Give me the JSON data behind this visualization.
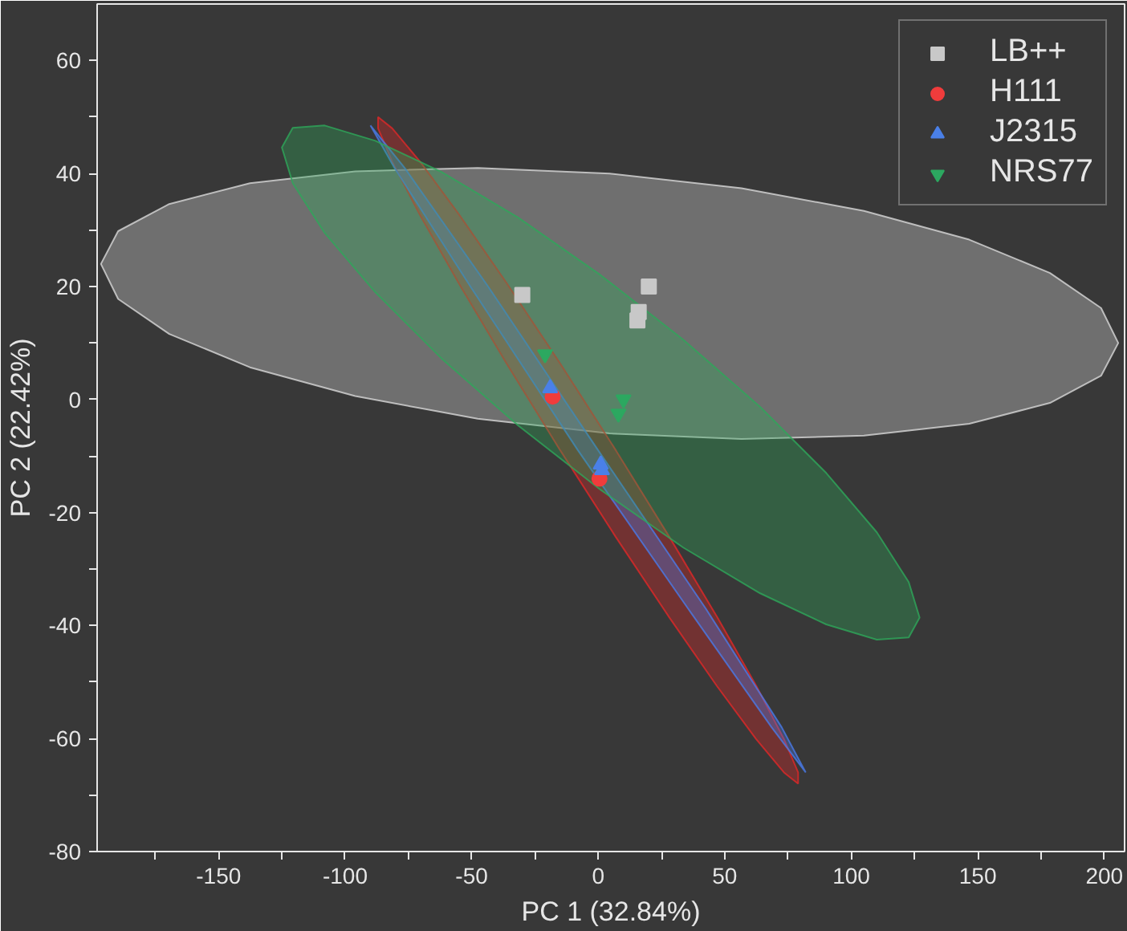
{
  "chart_data": {
    "type": "scatter",
    "xlabel": "PC 1 (32.84%)",
    "ylabel": "PC 2 (22.42%)",
    "xlim": [
      -198,
      208
    ],
    "ylim": [
      -80,
      70
    ],
    "xticks": [
      {
        "value": -175,
        "label": null
      },
      -150,
      {
        "value": -125,
        "label": null
      },
      -100,
      {
        "value": -75,
        "label": null
      },
      -50,
      {
        "value": -25,
        "label": null
      },
      0,
      {
        "value": 25,
        "label": null
      },
      50,
      {
        "value": 75,
        "label": null
      },
      100,
      {
        "value": 125,
        "label": null
      },
      150,
      {
        "value": 175,
        "label": null
      },
      200
    ],
    "yticks": [
      -80,
      {
        "value": -70,
        "label": null
      },
      -60,
      {
        "value": -50,
        "label": null
      },
      -40,
      {
        "value": -30,
        "label": null
      },
      -20,
      {
        "value": -10,
        "label": null
      },
      0,
      {
        "value": 10,
        "label": null
      },
      20,
      {
        "value": 30,
        "label": null
      },
      40,
      {
        "value": 50,
        "label": null
      },
      60
    ],
    "grid": false,
    "legend": "top right",
    "series": [
      {
        "type": "area",
        "color": "#d8d8d8",
        "x": [
          205.5,
          198.7,
          178.5,
          146.6,
          105,
          56.6,
          4.5,
          -47.6,
          -96,
          -137.6,
          -169.5,
          -189.7,
          -196.5,
          -189.7,
          -169.5,
          -137.6,
          -96,
          -47.6,
          4.5,
          56.6,
          105,
          146.6,
          178.5,
          198.7
        ],
        "values": [
          10,
          16.2,
          22.4,
          28.3,
          33.4,
          37.4,
          40,
          41,
          40.4,
          38.3,
          34.6,
          29.8,
          24,
          17.8,
          11.6,
          5.7,
          0.6,
          -3.4,
          -6,
          -7,
          -6.4,
          -4.3,
          -0.6,
          4.2
        ]
      },
      {
        "type": "area",
        "color": "#e02828",
        "x": [
          -87,
          -81.4,
          -70.4,
          -54.9,
          -36,
          -14.9,
          7,
          28.1,
          47,
          62.5,
          73.4,
          79,
          79,
          73.4,
          62.4,
          46.9,
          28,
          6.9,
          -15,
          -36.1,
          -55,
          -70.5,
          -81.4,
          -87
        ],
        "values": [
          50,
          48,
          42.1,
          32.7,
          20.5,
          6.3,
          -9,
          -24.3,
          -38.5,
          -50.7,
          -60.1,
          -66,
          -68,
          -66,
          -60.1,
          -50.7,
          -38.5,
          -24.3,
          -9,
          6.3,
          20.5,
          32.7,
          42.1,
          48
        ]
      },
      {
        "type": "area",
        "color": "#4a7be8",
        "x": [
          -90,
          -76.5,
          -43.5,
          0,
          42.5,
          72.5,
          82,
          68.5,
          35.5,
          -8,
          -50.5,
          -80.5
        ],
        "values": [
          48.5,
          41,
          20,
          -9,
          -37,
          -58,
          -66,
          -58,
          -37,
          -9,
          20,
          41
        ]
      },
      {
        "type": "area",
        "color": "#2ea85a",
        "x": [
          127,
          122.7,
          110.1,
          90.1,
          64,
          33.6,
          1,
          -31.6,
          -62,
          -88.1,
          -108.1,
          -120.7,
          -125,
          -120.7,
          -108.1,
          -88.1,
          -62,
          -31.6,
          1,
          33.6,
          64,
          90.1,
          110.1,
          122.7
        ],
        "values": [
          -38.6,
          -32.3,
          -23.5,
          -13,
          -1.3,
          10.6,
          22,
          32.2,
          40.3,
          45.8,
          48.5,
          48.1,
          44.6,
          38.3,
          29.5,
          19,
          7.3,
          -4.6,
          -16,
          -26.2,
          -34.3,
          -39.8,
          -42.5,
          -42.1
        ]
      },
      {
        "name": "LB++",
        "marker": "square",
        "color": "#c8c8c8",
        "x": [
          -30,
          20,
          16,
          15.5
        ],
        "values": [
          18.5,
          20,
          15.5,
          14
        ]
      },
      {
        "name": "H111",
        "marker": "circle",
        "color": "#f03c3c",
        "x": [
          -18,
          0.5
        ],
        "values": [
          0.5,
          -14
        ]
      },
      {
        "name": "J2315",
        "marker": "triangle",
        "color": "#4a80e8",
        "x": [
          -19,
          1,
          1.5
        ],
        "values": [
          2,
          -11.5,
          -12.5
        ]
      },
      {
        "name": "NRS77",
        "marker": "triangle_down",
        "color": "#2ca860",
        "x": [
          -21,
          10,
          8
        ],
        "values": [
          8,
          0,
          -2.5
        ]
      }
    ]
  }
}
